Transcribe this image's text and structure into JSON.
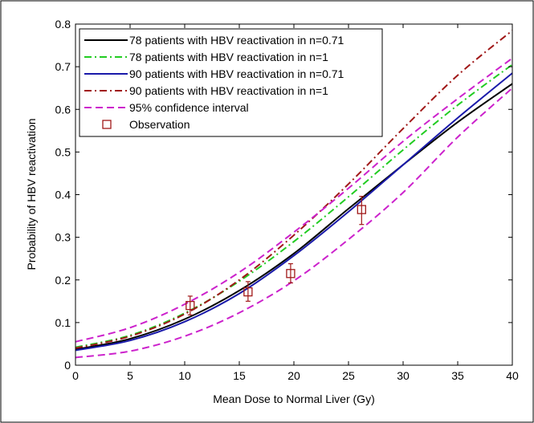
{
  "chart_data": {
    "type": "line",
    "xlabel": "Mean Dose to Normal Liver (Gy)",
    "ylabel": "Probability of HBV reactivation",
    "xlim": [
      0,
      40
    ],
    "ylim": [
      0,
      0.8
    ],
    "xticks": [
      0,
      5,
      10,
      15,
      20,
      25,
      30,
      35,
      40
    ],
    "yticks": [
      0,
      0.1,
      0.2,
      0.3,
      0.4,
      0.5,
      0.6,
      0.7,
      0.8
    ],
    "xtick_labels": [
      "0",
      "5",
      "10",
      "15",
      "20",
      "25",
      "30",
      "35",
      "40"
    ],
    "ytick_labels": [
      "0",
      "0.1",
      "0.2",
      "0.3",
      "0.4",
      "0.5",
      "0.6",
      "0.7",
      "0.8"
    ],
    "grid": false,
    "legend_position": "top-left",
    "x": [
      0,
      5,
      10,
      15,
      20,
      25,
      30,
      35,
      40
    ],
    "series": [
      {
        "name": "78 patients with HBV reactivation in n=0.71",
        "color": "#000000",
        "style": "solid",
        "values": [
          0.037,
          0.062,
          0.108,
          0.175,
          0.262,
          0.367,
          0.47,
          0.57,
          0.66
        ]
      },
      {
        "name": "78 patients with HBV reactivation in n=1",
        "color": "#22cc22",
        "style": "dashdot",
        "values": [
          0.042,
          0.07,
          0.122,
          0.197,
          0.29,
          0.395,
          0.505,
          0.61,
          0.705
        ]
      },
      {
        "name": "90 patients with HBV reactivation in n=0.71",
        "color": "#1a1aaa",
        "style": "solid",
        "values": [
          0.035,
          0.058,
          0.102,
          0.168,
          0.257,
          0.36,
          0.47,
          0.58,
          0.685
        ]
      },
      {
        "name": "90 patients with HBV reactivation in n=1",
        "color": "#a01818",
        "style": "dashdot",
        "values": [
          0.04,
          0.068,
          0.12,
          0.2,
          0.305,
          0.425,
          0.555,
          0.68,
          0.785
        ]
      },
      {
        "name": "95% confidence interval",
        "color": "#cc22cc",
        "style": "dashed",
        "values": [
          0.055,
          0.088,
          0.143,
          0.218,
          0.312,
          0.415,
          0.525,
          0.625,
          0.72
        ]
      },
      {
        "name": "95% confidence interval (lower)",
        "color": "#cc22cc",
        "style": "dashed",
        "legend": false,
        "values": [
          0.018,
          0.033,
          0.068,
          0.123,
          0.198,
          0.295,
          0.405,
          0.535,
          0.65
        ]
      }
    ],
    "observations": {
      "name": "Observation",
      "color": "#a01818",
      "points": [
        {
          "x": 10.5,
          "y": 0.14,
          "lo": 0.118,
          "hi": 0.162
        },
        {
          "x": 15.8,
          "y": 0.172,
          "lo": 0.15,
          "hi": 0.196
        },
        {
          "x": 19.7,
          "y": 0.215,
          "lo": 0.193,
          "hi": 0.238
        },
        {
          "x": 26.2,
          "y": 0.365,
          "lo": 0.33,
          "hi": 0.396
        }
      ]
    }
  }
}
